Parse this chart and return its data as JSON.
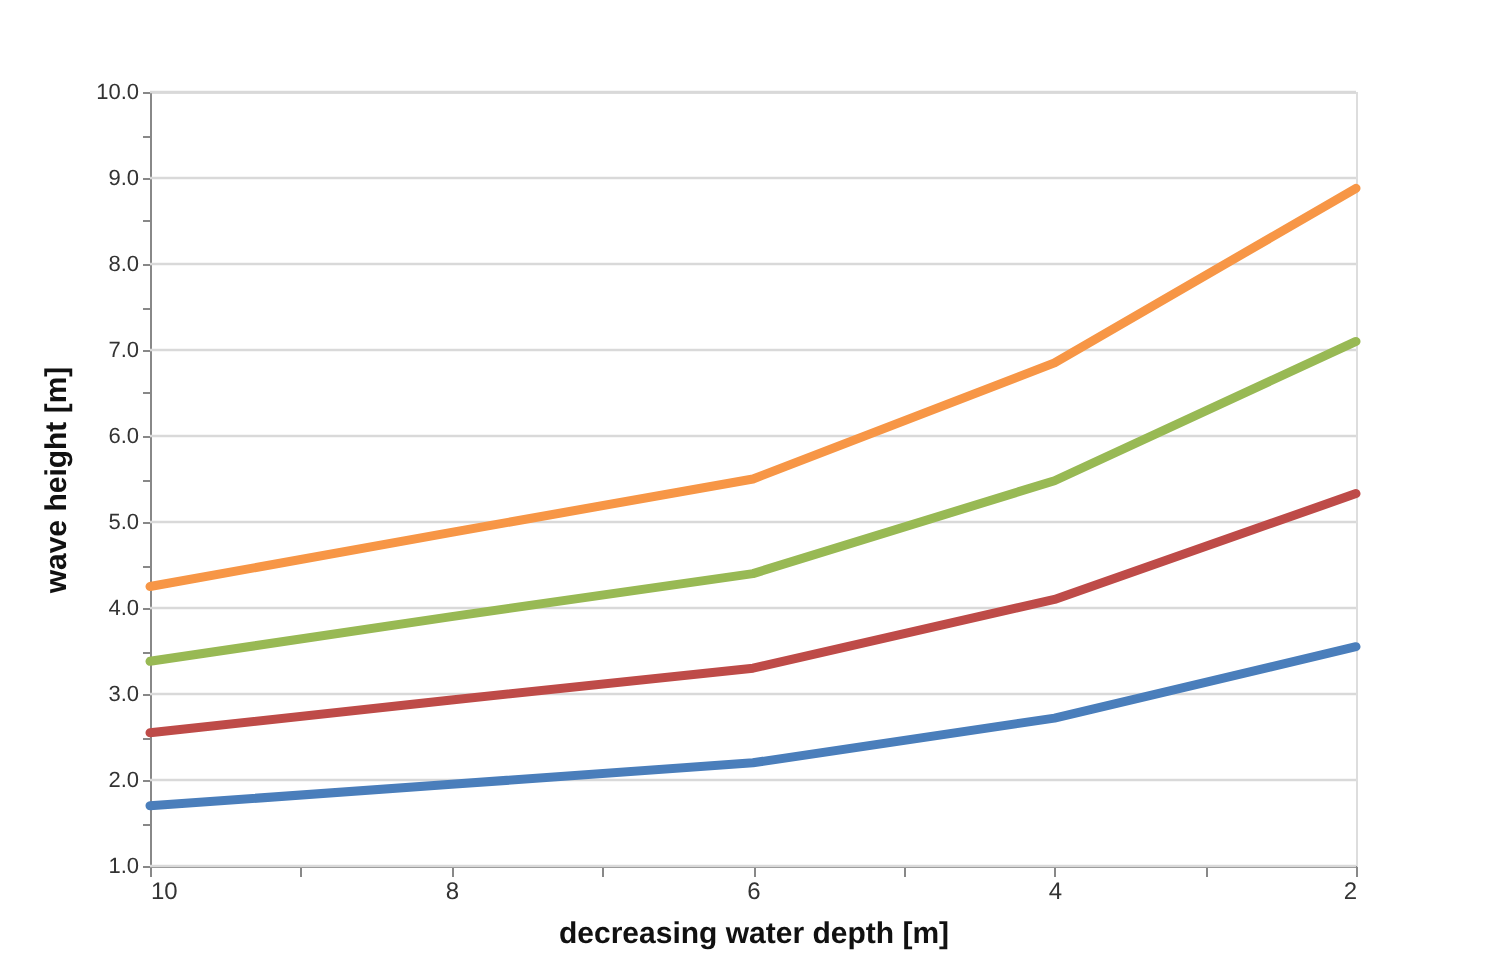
{
  "chart_data": {
    "type": "line",
    "xlabel": "decreasing water depth [m]",
    "ylabel": "wave height [m]",
    "x": [
      10,
      8,
      6,
      4,
      2
    ],
    "series": [
      {
        "color": "#4a7ebb",
        "values": [
          1.7,
          1.95,
          2.2,
          2.72,
          3.55
        ]
      },
      {
        "color": "#be4b48",
        "values": [
          2.55,
          2.93,
          3.3,
          4.1,
          5.33
        ]
      },
      {
        "color": "#98b954",
        "values": [
          3.38,
          3.9,
          4.4,
          5.48,
          7.1
        ]
      },
      {
        "color": "#f79646",
        "values": [
          4.25,
          4.88,
          5.5,
          6.85,
          8.88
        ]
      }
    ],
    "xlim": [
      10,
      2
    ],
    "xticks": [
      10,
      {
        "value": 9,
        "label": null
      },
      8,
      {
        "value": 7,
        "label": null
      },
      6,
      {
        "value": 5,
        "label": null
      },
      4,
      {
        "value": 3,
        "label": null
      },
      2
    ],
    "ylim": [
      1,
      10
    ],
    "yticks": [
      {
        "value": 1,
        "label": "1.0"
      },
      {
        "value": 1.5,
        "label": null
      },
      {
        "value": 2,
        "label": "2.0"
      },
      {
        "value": 2.5,
        "label": null
      },
      {
        "value": 3,
        "label": "3.0"
      },
      {
        "value": 3.5,
        "label": null
      },
      {
        "value": 4,
        "label": "4.0"
      },
      {
        "value": 4.5,
        "label": null
      },
      {
        "value": 5,
        "label": "5.0"
      },
      {
        "value": 5.5,
        "label": null
      },
      {
        "value": 6,
        "label": "6.0"
      },
      {
        "value": 6.5,
        "label": null
      },
      {
        "value": 7,
        "label": "7.0"
      },
      {
        "value": 7.5,
        "label": null
      },
      {
        "value": 8,
        "label": "8.0"
      },
      {
        "value": 8.5,
        "label": null
      },
      {
        "value": 9,
        "label": "9.0"
      },
      {
        "value": 9.5,
        "label": null
      },
      {
        "value": 10,
        "label": "10.0"
      }
    ],
    "grid": "y",
    "legend": false,
    "marker": "none",
    "line_style": "solid"
  }
}
